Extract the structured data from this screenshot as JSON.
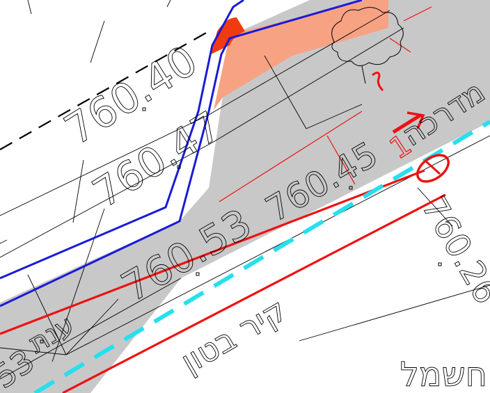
{
  "map": {
    "colors": {
      "road_gray": "#c8c8c8",
      "planned_orange": "#f7a283",
      "corner_red": "#f23a10",
      "boundary_blue": "#1a1ad6",
      "plan_red": "#ee1111",
      "utility_cyan": "#26e0ee",
      "line_black": "#000000",
      "background": "#ffffff"
    },
    "elevations": {
      "e1": "760.40",
      "e2": "760.47",
      "e3": "760.53",
      "e4": "760.45",
      "e5": "760.26",
      "e6": "53"
    },
    "hebrew_labels": {
      "street": "מדרכה",
      "wall": "קיר בטון",
      "electric": "חשמל",
      "partial": "ענת"
    },
    "red_markers": {
      "arrow_number": "1",
      "tilde": "~"
    },
    "icons": [
      "tree-icon",
      "circle-marker-icon",
      "arrow-icon"
    ]
  }
}
